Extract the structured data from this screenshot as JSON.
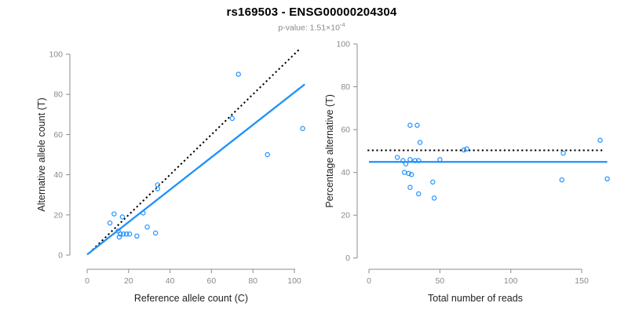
{
  "title": "rs169503 - ENSG00000204304",
  "subtitle": {
    "label_and_value": "p-value: 1.51×10",
    "exponent": "-4"
  },
  "colors": {
    "point_blue": "#1E90FF",
    "fit_line_blue": "#1E90FF",
    "reference_line_black": "#000000",
    "axis_gray": "#8c8c8c",
    "tick_label_gray": "#8a8a8a",
    "axis_title_color": "#222222"
  },
  "chart_data": [
    {
      "type": "scatter",
      "name": "allele-counts-scatter",
      "xlabel": "Reference allele count (C)",
      "ylabel": "Alternative allele count (T)",
      "xticks": [
        0,
        20,
        40,
        60,
        80,
        100
      ],
      "yticks": [
        0,
        20,
        40,
        60,
        80,
        100
      ],
      "xlim": [
        0,
        105
      ],
      "ylim": [
        0,
        104
      ],
      "grid": false,
      "legend": "none",
      "points": [
        [
          11,
          16
        ],
        [
          13,
          20.5
        ],
        [
          17,
          19
        ],
        [
          15,
          12
        ],
        [
          15.5,
          9
        ],
        [
          16,
          10.5
        ],
        [
          17.5,
          10.5
        ],
        [
          19,
          10.5
        ],
        [
          20.5,
          10.5
        ],
        [
          24,
          9.5
        ],
        [
          27,
          21
        ],
        [
          29,
          14
        ],
        [
          33,
          11
        ],
        [
          34,
          35
        ],
        [
          34,
          33
        ],
        [
          70,
          68
        ],
        [
          73,
          90
        ],
        [
          87,
          50
        ],
        [
          104,
          63
        ]
      ],
      "lines": [
        {
          "name": "identity-line",
          "style": "dotted",
          "color": "#000000",
          "x1": 1,
          "y1": 1,
          "x2": 103,
          "y2": 103
        },
        {
          "name": "regression-line",
          "style": "solid",
          "color": "#1E90FF",
          "x1": 0,
          "y1": 0.3,
          "x2": 105,
          "y2": 85
        }
      ]
    },
    {
      "type": "scatter",
      "name": "percentage-vs-reads-scatter",
      "xlabel": "Total number of reads",
      "ylabel": "Percentage alternative (T)",
      "xticks": [
        0,
        50,
        100,
        150
      ],
      "yticks": [
        0,
        20,
        40,
        60,
        80,
        100
      ],
      "xlim": [
        0,
        170
      ],
      "ylim": [
        0,
        100
      ],
      "grid": false,
      "legend": "none",
      "points": [
        [
          29,
          62
        ],
        [
          34,
          62
        ],
        [
          36,
          54
        ],
        [
          20,
          47
        ],
        [
          24,
          45.5
        ],
        [
          26,
          44
        ],
        [
          29,
          46
        ],
        [
          32.5,
          45.5
        ],
        [
          35,
          45.5
        ],
        [
          50,
          46
        ],
        [
          25,
          40
        ],
        [
          28,
          39.5
        ],
        [
          30,
          39
        ],
        [
          29,
          33
        ],
        [
          35,
          30
        ],
        [
          45,
          35.5
        ],
        [
          46,
          28
        ],
        [
          67,
          50.5
        ],
        [
          69,
          51
        ],
        [
          137,
          49
        ],
        [
          136,
          36.5
        ],
        [
          163,
          55
        ],
        [
          168,
          37
        ]
      ],
      "lines": [
        {
          "name": "expected-50pct-line",
          "style": "dotted",
          "color": "#000000",
          "x1": -1,
          "y1": 50.3,
          "x2": 166,
          "y2": 50.3
        },
        {
          "name": "mean-percentage-line",
          "style": "solid",
          "color": "#1E90FF",
          "x1": 0,
          "y1": 44.9,
          "x2": 168,
          "y2": 44.9
        }
      ]
    }
  ]
}
